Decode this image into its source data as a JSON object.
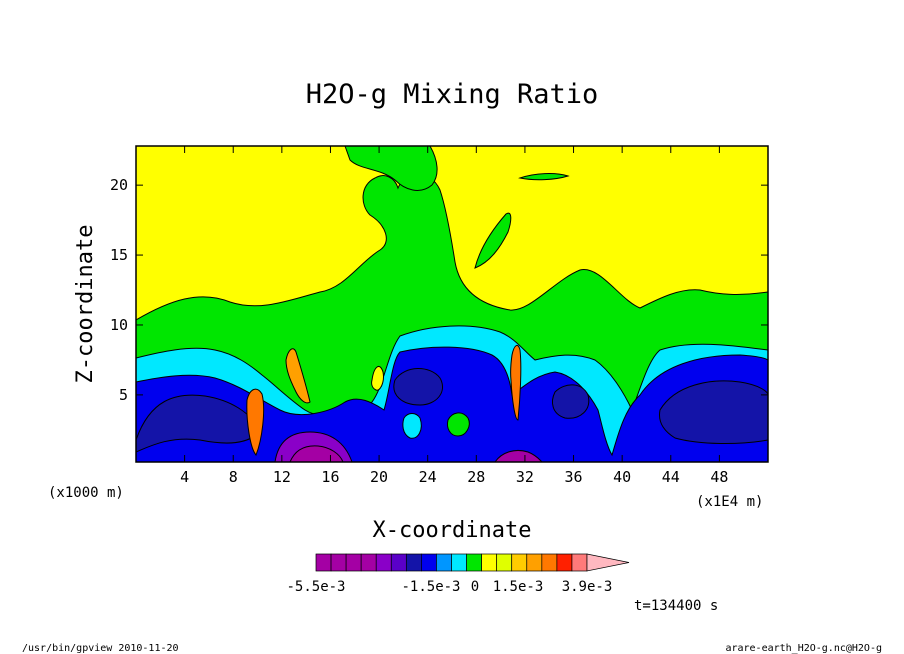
{
  "chart_data": {
    "type": "heatmap",
    "title": "H2O-g Mixing Ratio",
    "xlabel": "X-coordinate",
    "ylabel": "Z-coordinate",
    "x_unit_left": "(x1000 m)",
    "x_unit_right": "(x1E4 m)",
    "xlim": [
      0,
      52
    ],
    "ylim": [
      0.2,
      22.8
    ],
    "x_ticks": [
      4,
      8,
      12,
      16,
      20,
      24,
      28,
      32,
      36,
      40,
      44,
      48
    ],
    "y_ticks": [
      5,
      10,
      15,
      20
    ],
    "colorbar": {
      "colors": [
        "#a400a4",
        "#a400a4",
        "#a400a4",
        "#a400a4",
        "#8a00c8",
        "#5a00c8",
        "#1414a8",
        "#0000ee",
        "#0096ff",
        "#00e8ff",
        "#00e600",
        "#ffff00",
        "#e0ff00",
        "#ffcc00",
        "#ffa000",
        "#ff7800",
        "#ff2000",
        "#ff7a7a",
        "#ffb8c0"
      ],
      "tick_labels": [
        "-5.5e-3",
        "-1.5e-3",
        "0",
        "1.5e-3",
        "3.9e-3"
      ]
    },
    "time_label": "t=134400 s",
    "footer_left": "/usr/bin/gpview  2010-11-20",
    "footer_right": "arare-earth_H2O-g.nc@H2O-g"
  }
}
